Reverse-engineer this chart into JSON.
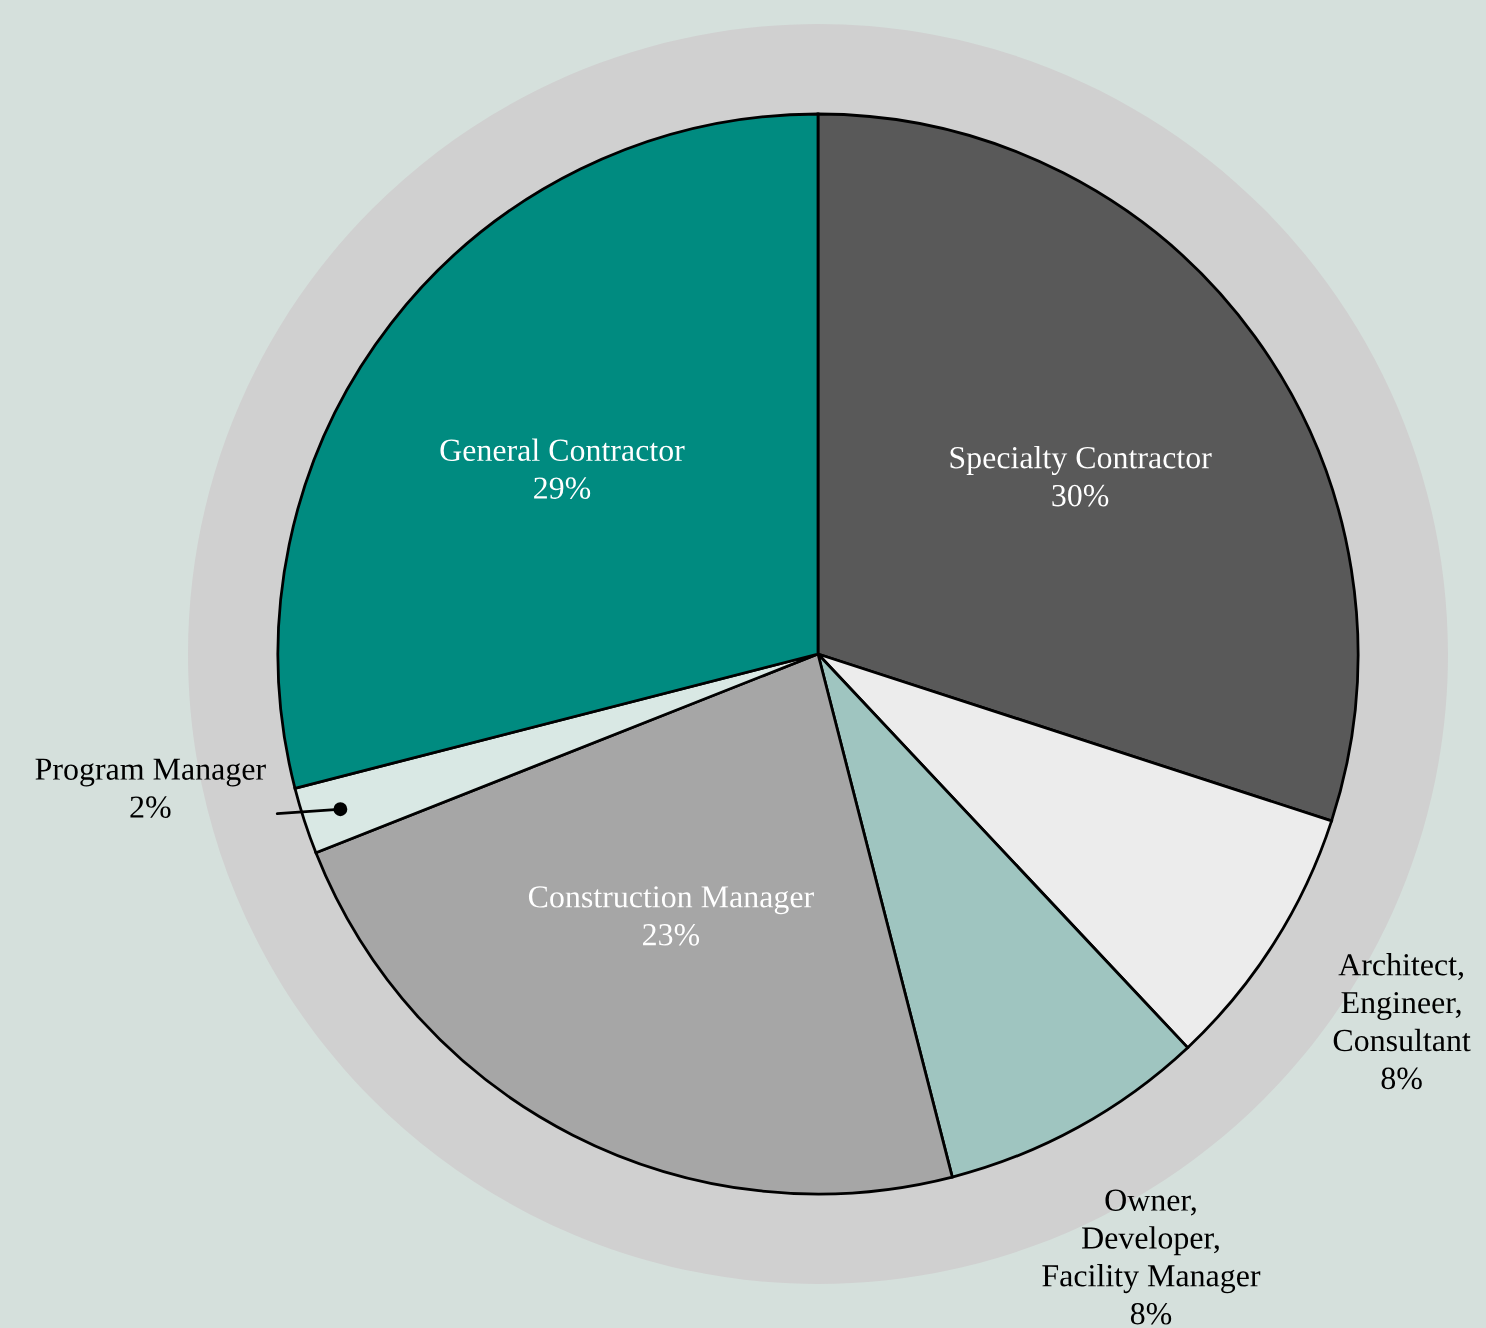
{
  "chart_data": {
    "type": "pie",
    "categories": [
      "Specialty Contractor",
      "Architect,\nEngineer,\nConsultant",
      "Owner,\nDeveloper,\nFacility Manager",
      "Construction Manager",
      "Program Manager",
      "General Contractor"
    ],
    "values": [
      30,
      8,
      8,
      23,
      2,
      29
    ],
    "value_labels": [
      "30%",
      "8%",
      "8%",
      "23%",
      "2%",
      "29%"
    ],
    "colors": [
      "#595959",
      "#ececec",
      "#9fc5c0",
      "#a6a6a6",
      "#d9e8e4",
      "#008b80"
    ],
    "legend": false
  }
}
